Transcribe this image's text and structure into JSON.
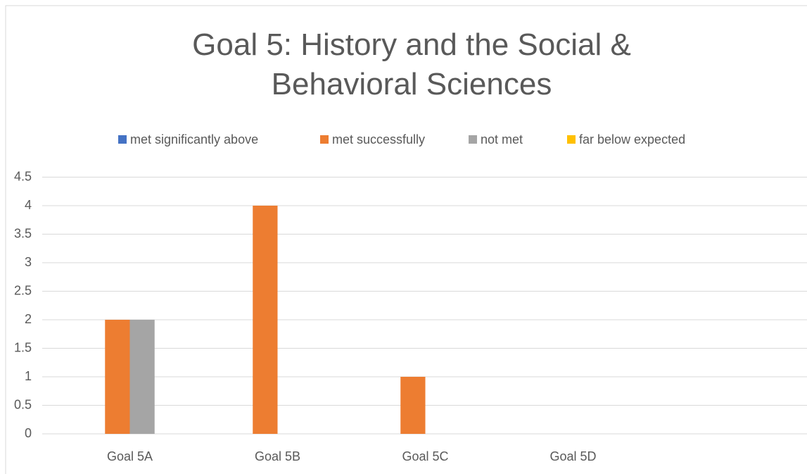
{
  "chart_data": {
    "type": "bar",
    "title": "Goal 5: History and the Social & Behavioral Sciences",
    "categories": [
      "Goal 5A",
      "Goal 5B",
      "Goal 5C",
      "Goal 5D",
      null
    ],
    "series": [
      {
        "name": "met significantly above",
        "color": "#4472c4",
        "values": [
          0,
          0,
          0,
          0,
          null
        ]
      },
      {
        "name": "met successfully",
        "color": "#ed7d31",
        "values": [
          2,
          4,
          1,
          0,
          null
        ]
      },
      {
        "name": "not met",
        "color": "#a5a5a5",
        "values": [
          2,
          0,
          0,
          0,
          null
        ]
      },
      {
        "name": "far below expected",
        "color": "#ffc000",
        "values": [
          0,
          0,
          0,
          0,
          null
        ]
      }
    ],
    "ylim": [
      0,
      4.5
    ],
    "yticks": [
      0,
      0.5,
      1,
      1.5,
      2,
      2.5,
      3,
      3.5,
      4,
      4.5
    ],
    "grid": true,
    "legend": "top"
  }
}
